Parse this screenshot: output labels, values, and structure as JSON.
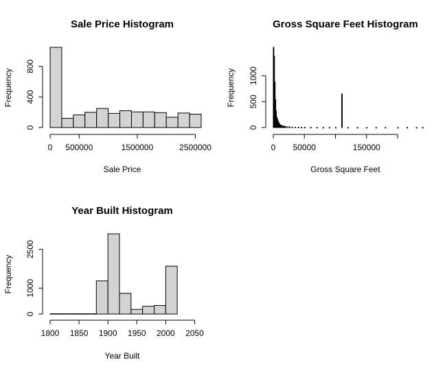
{
  "chart_data": [
    {
      "type": "bar",
      "title": "Sale Price Histogram",
      "xlabel": "Sale Price",
      "ylabel": "Frequency",
      "bin_edges": [
        0,
        200000,
        400000,
        600000,
        800000,
        1000000,
        1200000,
        1400000,
        1600000,
        1800000,
        2000000,
        2200000,
        2400000,
        2600000
      ],
      "values": [
        1050,
        120,
        165,
        200,
        250,
        185,
        220,
        205,
        205,
        195,
        135,
        190,
        175
      ],
      "xlim": [
        0,
        2600000
      ],
      "ylim": [
        0,
        1050
      ],
      "xticks": [
        0,
        500000,
        1500000,
        2500000
      ],
      "xtick_labels": [
        "0",
        "500000",
        "1500000",
        "2500000"
      ],
      "yticks": [
        0,
        400,
        800
      ],
      "ytick_labels": [
        "0",
        "400",
        "800"
      ]
    },
    {
      "type": "bar",
      "title": "Gross Square Feet Histogram",
      "xlabel": "Gross Square Feet",
      "ylabel": "Frequency",
      "bin_width": 1000,
      "counts": [
        {
          "x": 0,
          "y": 1550
        },
        {
          "x": 1000,
          "y": 1380
        },
        {
          "x": 2000,
          "y": 880
        },
        {
          "x": 3000,
          "y": 540
        },
        {
          "x": 4000,
          "y": 320
        },
        {
          "x": 5000,
          "y": 200
        },
        {
          "x": 6000,
          "y": 170
        },
        {
          "x": 7000,
          "y": 130
        },
        {
          "x": 8000,
          "y": 100
        },
        {
          "x": 9000,
          "y": 80
        },
        {
          "x": 10000,
          "y": 60
        },
        {
          "x": 12000,
          "y": 45
        },
        {
          "x": 14000,
          "y": 35
        },
        {
          "x": 16000,
          "y": 28
        },
        {
          "x": 18000,
          "y": 22
        },
        {
          "x": 20000,
          "y": 18
        },
        {
          "x": 23000,
          "y": 14
        },
        {
          "x": 26000,
          "y": 12
        },
        {
          "x": 30000,
          "y": 10
        },
        {
          "x": 35000,
          "y": 8
        },
        {
          "x": 40000,
          "y": 7
        },
        {
          "x": 45000,
          "y": 6
        },
        {
          "x": 50000,
          "y": 5
        },
        {
          "x": 60000,
          "y": 4
        },
        {
          "x": 70000,
          "y": 4
        },
        {
          "x": 80000,
          "y": 3
        },
        {
          "x": 90000,
          "y": 3
        },
        {
          "x": 100000,
          "y": 3
        },
        {
          "x": 110000,
          "y": 650
        },
        {
          "x": 120000,
          "y": 3
        },
        {
          "x": 135000,
          "y": 2
        },
        {
          "x": 150000,
          "y": 3
        },
        {
          "x": 165000,
          "y": 2
        },
        {
          "x": 180000,
          "y": 3
        },
        {
          "x": 200000,
          "y": 2
        },
        {
          "x": 215000,
          "y": 4
        },
        {
          "x": 230000,
          "y": 2
        },
        {
          "x": 240000,
          "y": 3
        }
      ],
      "xlim": [
        0,
        243000
      ],
      "ylim": [
        0,
        1550
      ],
      "xticks": [
        0,
        50000,
        150000
      ],
      "xtick_labels": [
        "0",
        "50000",
        "150000"
      ],
      "xticks_unlabeled": [
        100000,
        200000
      ],
      "yticks": [
        0,
        500,
        1000
      ],
      "ytick_labels": [
        "0",
        "500",
        "1000"
      ]
    },
    {
      "type": "bar",
      "title": "Year Built Histogram",
      "xlabel": "Year Built",
      "ylabel": "Frequency",
      "bin_edges": [
        1800,
        1820,
        1840,
        1860,
        1880,
        1900,
        1920,
        1940,
        1960,
        1980,
        2000,
        2020
      ],
      "values": [
        10,
        10,
        10,
        10,
        1280,
        3100,
        800,
        180,
        300,
        330,
        1850
      ],
      "xlim": [
        1800,
        2040
      ],
      "ylim": [
        0,
        3100
      ],
      "xticks": [
        1800,
        1850,
        1900,
        1950,
        2000,
        2050
      ],
      "xtick_labels": [
        "1800",
        "1850",
        "1900",
        "1950",
        "2000",
        "2050"
      ],
      "yticks": [
        0,
        1000,
        2500
      ],
      "ytick_labels": [
        "0",
        "1000",
        "2500"
      ]
    }
  ]
}
